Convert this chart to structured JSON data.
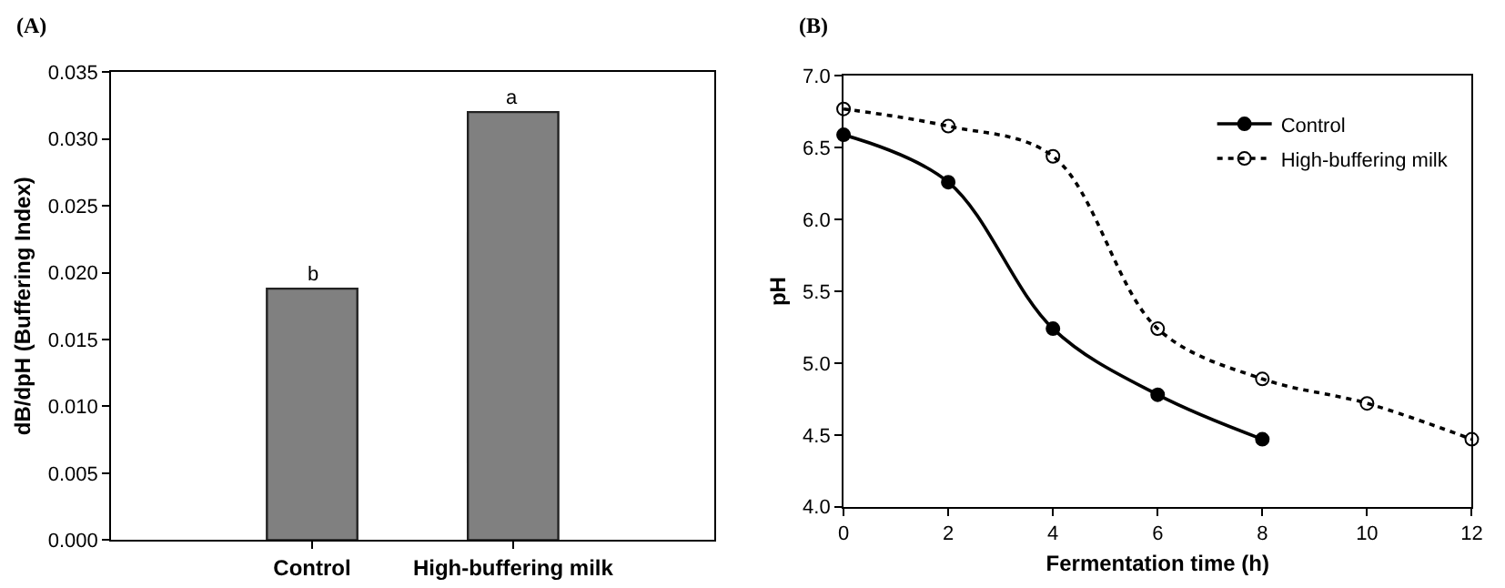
{
  "chart_data": [
    {
      "type": "bar",
      "title": "(A)",
      "ylabel": "dB/dpH (Buffering Index)",
      "categories": [
        "Control",
        "High-buffering milk"
      ],
      "values": [
        0.0188,
        0.032
      ],
      "color": "#808080",
      "ylim": [
        0,
        0.035
      ],
      "yticks": [
        {
          "value": 0,
          "label": "0.000"
        },
        0.005,
        {
          "value": 0.01,
          "label": "0.010"
        },
        0.015,
        {
          "value": 0.02,
          "label": "0.020"
        },
        0.025,
        {
          "value": 0.03,
          "label": "0.030"
        },
        0.035
      ],
      "annotations": [
        {
          "text": "b",
          "x": "Control",
          "y": 0.0188
        },
        {
          "text": "a",
          "x": "High-buffering milk",
          "y": 0.032
        }
      ]
    },
    {
      "type": "line",
      "title": "(B)",
      "xlabel": "Fermentation time (h)",
      "ylabel": "pH",
      "xlim": [
        0,
        12
      ],
      "xticks": [
        0,
        2,
        4,
        6,
        8,
        10,
        12
      ],
      "ylim": [
        4.0,
        7.0
      ],
      "yticks": [
        {
          "value": 4,
          "label": "4.0"
        },
        4.5,
        {
          "value": 5,
          "label": "5.0"
        },
        5.5,
        {
          "value": 6,
          "label": "6.0"
        },
        6.5,
        {
          "value": 7,
          "label": "7.0"
        }
      ],
      "legend": "top right",
      "marker": "circle",
      "series": [
        {
          "name": "Control",
          "color": "#000000",
          "x": [
            0,
            2,
            4,
            6,
            8
          ],
          "values": [
            6.59,
            6.26,
            5.24,
            4.78,
            4.47
          ],
          "line_style": "solid"
        },
        {
          "name": "High-buffering milk",
          "color": "#000000",
          "x": [
            0,
            2,
            4,
            6,
            8,
            10,
            12
          ],
          "values": [
            6.77,
            6.65,
            6.44,
            5.24,
            4.89,
            4.72,
            4.47
          ],
          "line_style": "dotted",
          "marker": "circle-open"
        }
      ]
    }
  ]
}
